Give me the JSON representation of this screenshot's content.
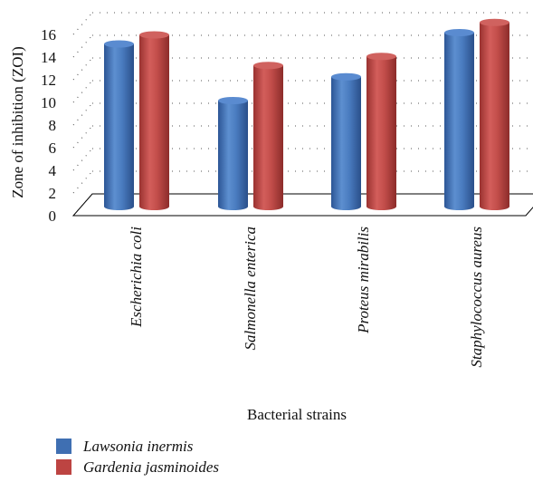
{
  "chart_data": {
    "type": "bar",
    "categories": [
      "Escherichia coli",
      "Salmonella enterica",
      "Proteus mirabilis",
      "Staphylococcus aureus"
    ],
    "series": [
      {
        "name": "Lawsonia inermis",
        "values": [
          14.2,
          9.2,
          11.3,
          15.2
        ],
        "color": "#3f6fb2"
      },
      {
        "name": "Gardenia jasminoides",
        "values": [
          15.0,
          12.3,
          13.1,
          16.1
        ],
        "color": "#bd4442"
      }
    ],
    "title": "",
    "xlabel": "Bacterial strains",
    "ylabel": "Zone of inhibition (ZOI)",
    "ylim": [
      0,
      16
    ],
    "yticks": [
      0,
      2,
      4,
      6,
      8,
      10,
      12,
      14,
      16
    ],
    "grid": "dotted",
    "legend_position": "bottom-left"
  }
}
